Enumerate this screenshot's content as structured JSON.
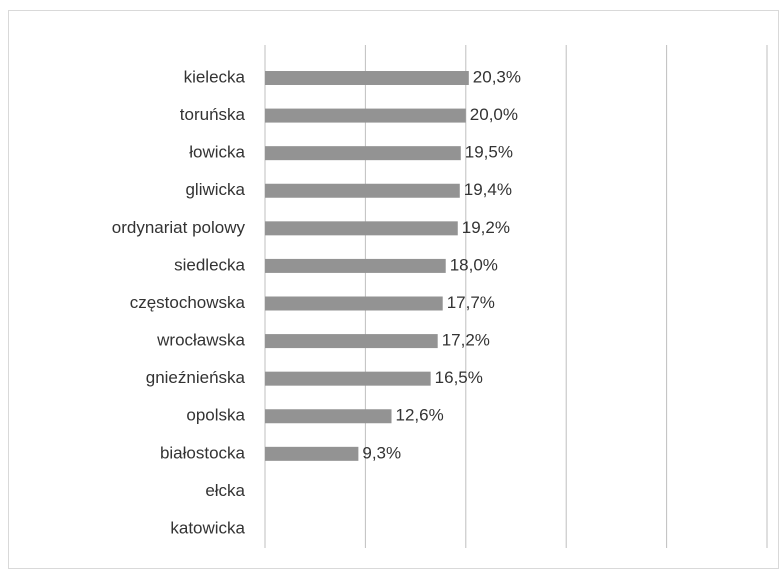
{
  "chart_data": {
    "type": "barh",
    "categories": [
      "kielecka",
      "toruńska",
      "łowicka",
      "gliwicka",
      "ordynariat polowy",
      "siedlecka",
      "częstochowska",
      "wrocławska",
      "gnieźnieńska",
      "opolska",
      "białostocka",
      "ełcka",
      "katowicka"
    ],
    "values": [
      20.3,
      20.0,
      19.5,
      19.4,
      19.2,
      18.0,
      17.7,
      17.2,
      16.5,
      12.6,
      9.3,
      null,
      null
    ],
    "value_labels": [
      "20,3%",
      "20,0%",
      "19,5%",
      "19,4%",
      "19,2%",
      "18,0%",
      "17,7%",
      "17,2%",
      "16,5%",
      "12,6%",
      "9,3%",
      null,
      null
    ],
    "color": "#939393",
    "xlim": [
      0,
      50
    ],
    "xticks": [
      0,
      10,
      20,
      30,
      40,
      50
    ],
    "grid": true
  }
}
